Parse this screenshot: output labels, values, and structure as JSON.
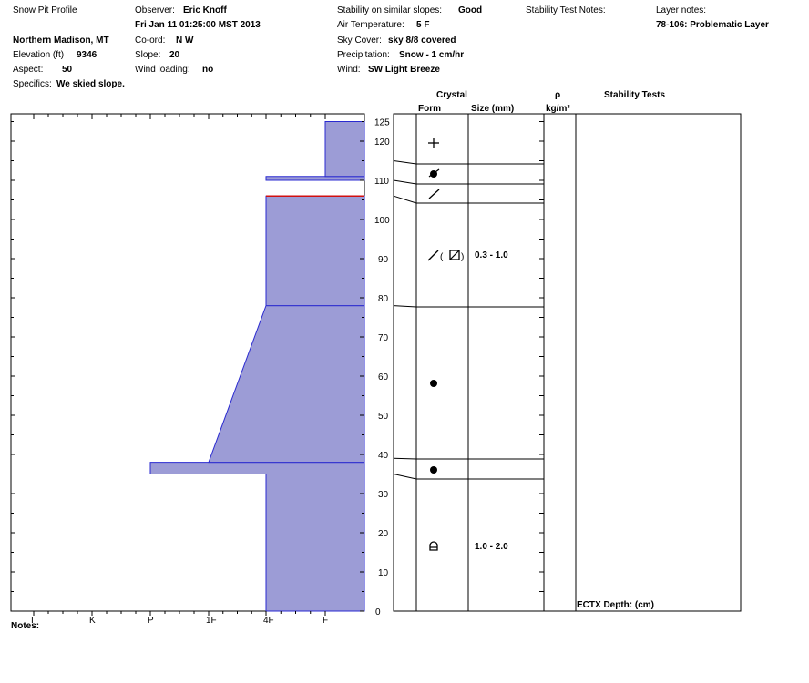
{
  "header": {
    "title": "Snow Pit Profile",
    "location": "Northern Madison, MT",
    "elevation_label": "Elevation (ft)",
    "elevation_value": "9346",
    "aspect_label": "Aspect:",
    "aspect_value": "50",
    "specifics_label": "Specifics:",
    "specifics_value": "We skied slope.",
    "observer_label": "Observer:",
    "observer_value": "Eric Knoff",
    "datetime": "Fri Jan 11 01:25:00 MST 2013",
    "coord_label": "Co-ord:",
    "coord_value": "N  W",
    "slope_label": "Slope:",
    "slope_value": "20",
    "wind_loading_label": "Wind loading:",
    "wind_loading_value": "no",
    "stability_label": "Stability on similar slopes:",
    "stability_value": "Good",
    "air_temp_label": "Air Temperature:",
    "air_temp_value": "5 F",
    "sky_label": "Sky Cover:",
    "sky_value": "sky 8/8 covered",
    "precip_label": "Precipitation:",
    "precip_value": "Snow - 1 cm/hr",
    "wind_label": "Wind:",
    "wind_value": "SW Light Breeze",
    "stability_test_notes_label": "Stability Test Notes:",
    "layer_notes_label": "Layer notes:",
    "layer_notes_value": "78-106: Problematic Layer"
  },
  "columns": {
    "crystal": "Crystal",
    "form": "Form",
    "size": "Size (mm)",
    "density": "ρ",
    "density_unit": "kg/m³",
    "stability_tests": "Stability Tests"
  },
  "footer": {
    "notes_label": "Notes:",
    "ectx_label": "ECTX  Depth: (cm)"
  },
  "colors": {
    "fill": "#9c9cd6",
    "outline": "#2a2ad0",
    "problem_line": "#d01010"
  },
  "chart_data": {
    "type": "hardness-profile",
    "y_unit": "cm",
    "ylim": [
      0,
      125
    ],
    "y_ticks": [
      0,
      10,
      20,
      30,
      40,
      50,
      60,
      70,
      80,
      90,
      100,
      110,
      120,
      125
    ],
    "hardness_categories": [
      "I",
      "K",
      "P",
      "1F",
      "4F",
      "F"
    ],
    "layers": [
      {
        "bottom": 0,
        "top": 35,
        "hardness": "4F"
      },
      {
        "bottom": 35,
        "top": 38,
        "hardness": "P"
      },
      {
        "bottom": 38,
        "top": 78,
        "hardness_bottom": "1F",
        "hardness_top": "4F"
      },
      {
        "bottom": 78,
        "top": 106,
        "hardness": "4F"
      },
      {
        "bottom": 110,
        "top": 111,
        "hardness": "4F"
      },
      {
        "bottom": 111,
        "top": 125,
        "hardness": "F"
      }
    ],
    "problematic_interface": 106,
    "stratigraphy": [
      {
        "top": 125,
        "bottom": 115,
        "form": "+",
        "size": ""
      },
      {
        "top": 115,
        "bottom": 110,
        "form": "faceted-rounded",
        "size": ""
      },
      {
        "top": 110,
        "bottom": 106,
        "form": "/",
        "size": ""
      },
      {
        "top": 106,
        "bottom": 78,
        "form": "/(⊠)",
        "size": "0.3 - 1.0"
      },
      {
        "top": 78,
        "bottom": 39,
        "form": "●",
        "size": ""
      },
      {
        "top": 39,
        "bottom": 35,
        "form": "●",
        "size": ""
      },
      {
        "top": 35,
        "bottom": 0,
        "form": "depth-hoar",
        "size": "1.0 - 2.0"
      }
    ]
  }
}
